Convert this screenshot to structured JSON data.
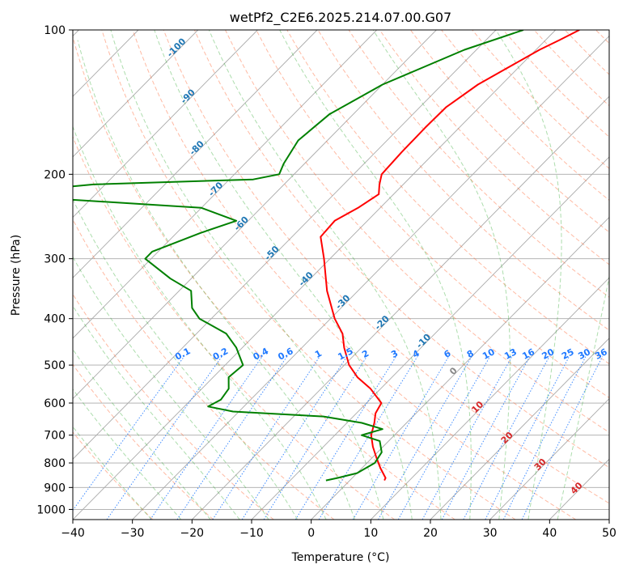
{
  "chart_data": {
    "type": "line",
    "title": "wetPf2_C2E6.2025.214.07.00.G07",
    "xlabel": "Temperature (°C)",
    "ylabel": "Pressure (hPa)",
    "xlim": [
      -40,
      50
    ],
    "ylim": [
      1050,
      100
    ],
    "y_scale": "log",
    "x_ticks": [
      "−40",
      "−30",
      "−20",
      "−10",
      "0",
      "10",
      "20",
      "30",
      "40",
      "50"
    ],
    "y_ticks": [
      "100",
      "200",
      "300",
      "400",
      "500",
      "600",
      "700",
      "800",
      "900",
      "1000"
    ],
    "grid": true,
    "skew_labels": [
      "-100",
      "-90",
      "-80",
      "-70",
      "-60",
      "-50",
      "-40",
      "-30",
      "-20",
      "-10",
      "0",
      "10",
      "20",
      "30",
      "40"
    ],
    "mixing_ratio_labels": [
      "0.1",
      "0.2",
      "0.4",
      "0.6",
      "1",
      "1.5",
      "2",
      "3",
      "4",
      "6",
      "8",
      "10",
      "13",
      "16",
      "20",
      "25",
      "30",
      "36"
    ],
    "colors": {
      "temperature": "#ff0000",
      "dewpoint": "#008000",
      "isotherm": "#999999",
      "dry_adiabat": "#ff6633",
      "moist_adiabat": "#33aa33",
      "mixing_ratio": "#1e78ff",
      "skew_label": "#1f77b4",
      "skew_label_warm": "#d62728",
      "skew_label_zero": "#888888"
    },
    "series": [
      {
        "role": "temperature",
        "points": [
          [
            100,
            -36.0
          ],
          [
            105,
            -37.7
          ],
          [
            110,
            -39.4
          ],
          [
            120,
            -41.8
          ],
          [
            130,
            -44.0
          ],
          [
            145,
            -45.6
          ],
          [
            160,
            -45.7
          ],
          [
            180,
            -45.6
          ],
          [
            200,
            -45.3
          ],
          [
            210,
            -44.0
          ],
          [
            220,
            -42.5
          ],
          [
            235,
            -43.7
          ],
          [
            250,
            -45.5
          ],
          [
            270,
            -45.2
          ],
          [
            300,
            -41.0
          ],
          [
            350,
            -35.2
          ],
          [
            400,
            -29.3
          ],
          [
            430,
            -25.5
          ],
          [
            460,
            -22.9
          ],
          [
            500,
            -19.2
          ],
          [
            530,
            -15.8
          ],
          [
            560,
            -11.7
          ],
          [
            600,
            -7.5
          ],
          [
            630,
            -6.8
          ],
          [
            660,
            -5.4
          ],
          [
            700,
            -3.9
          ],
          [
            740,
            -1.7
          ],
          [
            780,
            0.7
          ],
          [
            820,
            3.1
          ],
          [
            860,
            5.6
          ],
          [
            870,
            5.8
          ]
        ]
      },
      {
        "role": "dewpoint",
        "points": [
          [
            100,
            -45.4
          ],
          [
            110,
            -52.0
          ],
          [
            130,
            -60.0
          ],
          [
            150,
            -64.0
          ],
          [
            170,
            -64.9
          ],
          [
            190,
            -63.5
          ],
          [
            200,
            -62.5
          ],
          [
            205,
            -66.0
          ],
          [
            210,
            -92.0
          ],
          [
            215,
            -100.0
          ],
          [
            222,
            -100.0
          ],
          [
            226,
            -93.0
          ],
          [
            235,
            -70.0
          ],
          [
            250,
            -62.0
          ],
          [
            265,
            -66.0
          ],
          [
            290,
            -71.0
          ],
          [
            300,
            -71.0
          ],
          [
            330,
            -63.5
          ],
          [
            350,
            -58.0
          ],
          [
            380,
            -55.0
          ],
          [
            400,
            -52.0
          ],
          [
            430,
            -45.0
          ],
          [
            460,
            -41.0
          ],
          [
            500,
            -37.0
          ],
          [
            530,
            -37.4
          ],
          [
            560,
            -35.5
          ],
          [
            590,
            -35.0
          ],
          [
            610,
            -36.0
          ],
          [
            625,
            -31.0
          ],
          [
            640,
            -15.0
          ],
          [
            660,
            -7.5
          ],
          [
            680,
            -3.0
          ],
          [
            700,
            -5.5
          ],
          [
            720,
            -1.5
          ],
          [
            760,
            0.7
          ],
          [
            800,
            1.3
          ],
          [
            840,
            0.0
          ],
          [
            860,
            -2.5
          ],
          [
            870,
            -4.0
          ]
        ]
      }
    ]
  }
}
